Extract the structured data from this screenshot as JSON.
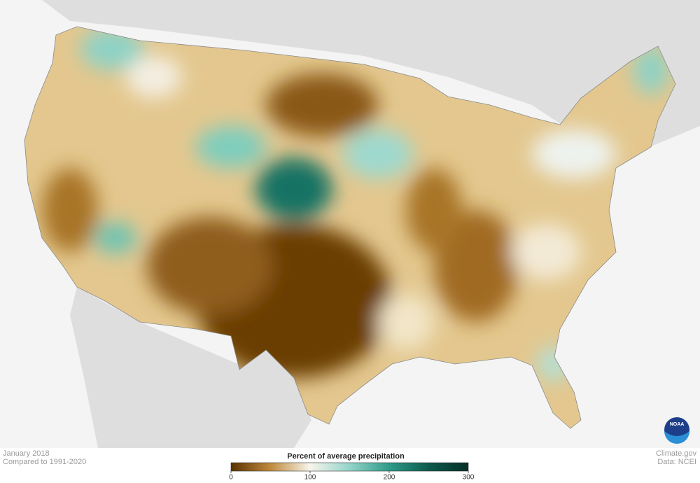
{
  "map": {
    "logo": "NOAA"
  },
  "footer": {
    "date": "January 2018",
    "baseline": "Compared to 1991-2020",
    "credit": "Climate.gov",
    "source": "Data: NCEI"
  },
  "legend": {
    "title": "Percent of average precipitation",
    "range": [
      0,
      300
    ],
    "ticks": [
      0,
      100,
      200,
      300
    ],
    "colors": [
      "#5a3200",
      "#bf8a3c",
      "#f8f5ec",
      "#93d4c9",
      "#2f9c8a",
      "#0d5a4b",
      "#062e26"
    ]
  }
}
